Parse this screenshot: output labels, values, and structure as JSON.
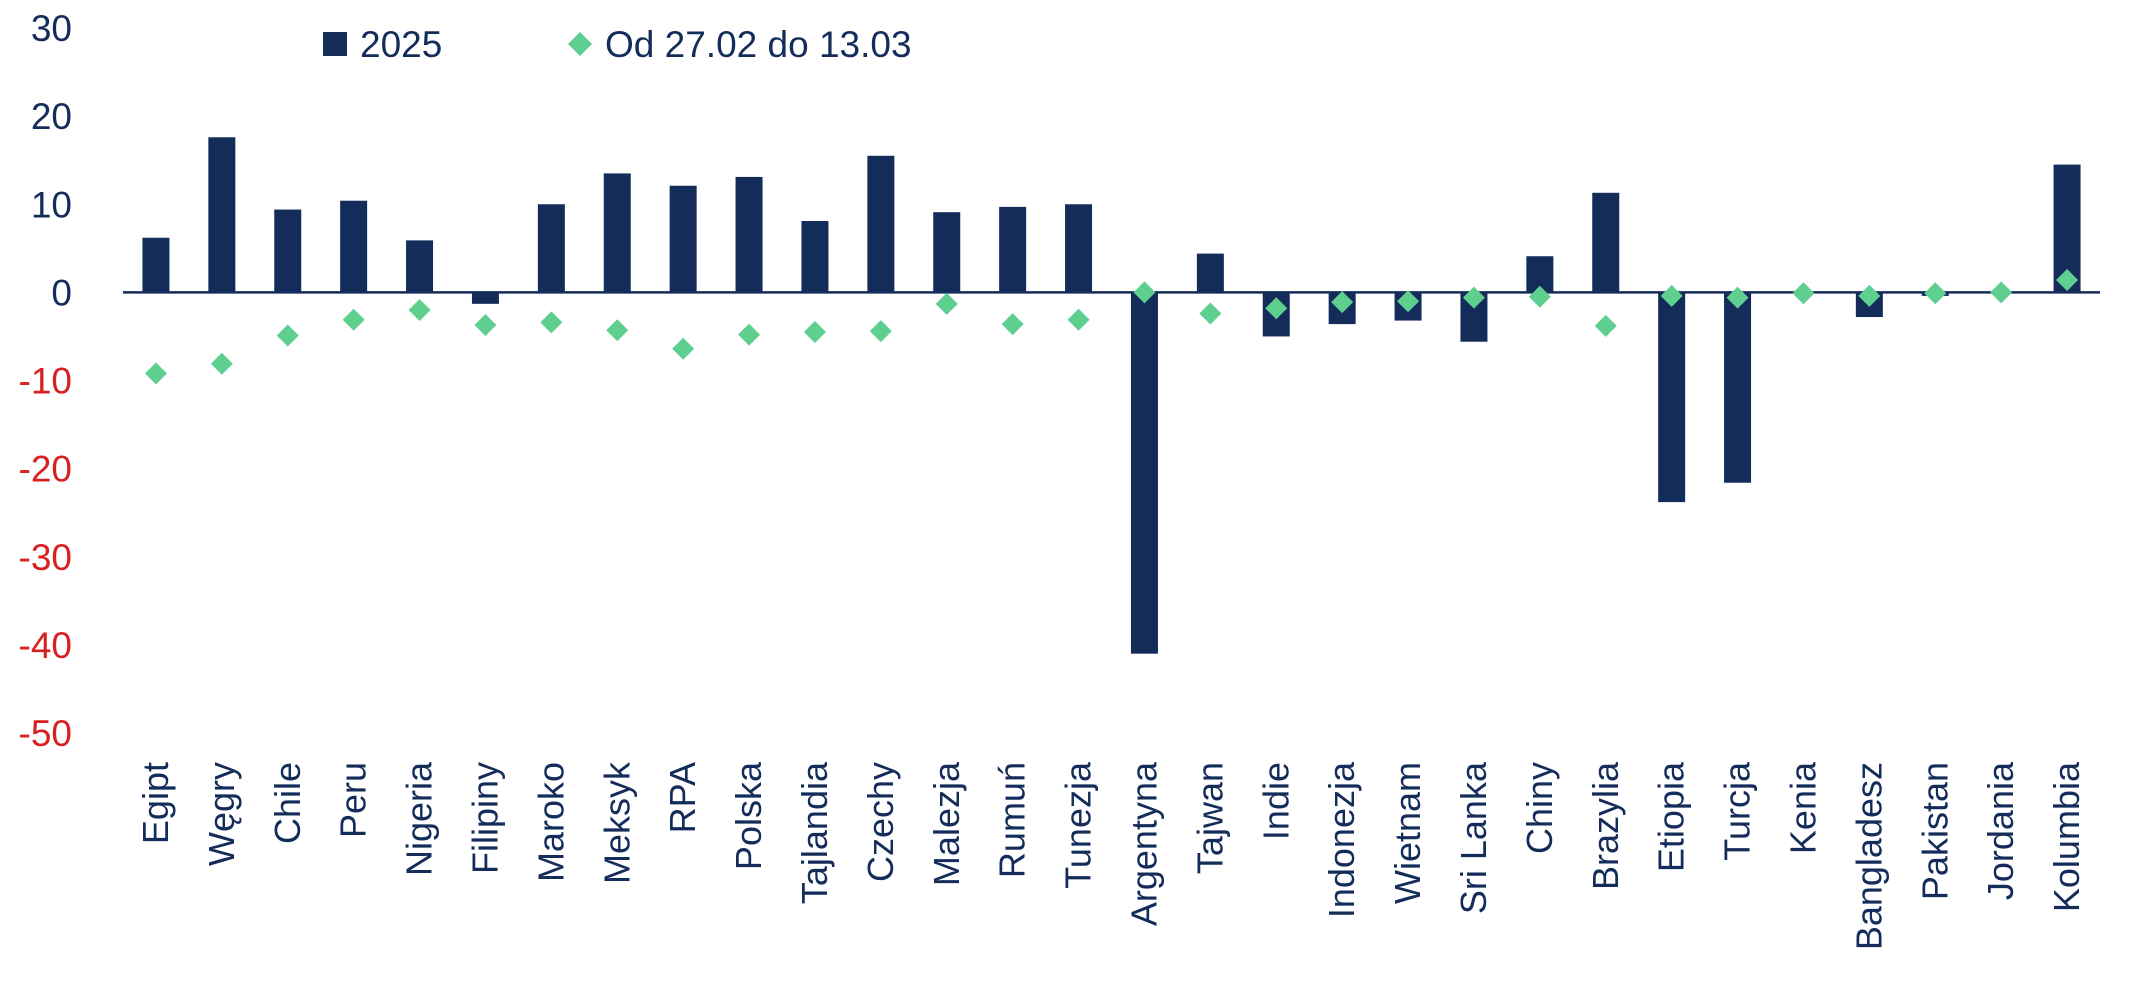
{
  "chart_data": {
    "type": "bar",
    "title": "",
    "xlabel": "",
    "ylabel": "",
    "ylim": [
      -50,
      30
    ],
    "yticks": [
      30,
      20,
      10,
      0,
      -10,
      -20,
      -30,
      -40,
      -50
    ],
    "categories": [
      "Egipt",
      "Węgry",
      "Chile",
      "Peru",
      "Nigeria",
      "Filipiny",
      "Maroko",
      "Meksyk",
      "RPA",
      "Polska",
      "Tajlandia",
      "Czechy",
      "Malezja",
      "Rumuń",
      "Tunezja",
      "Argentyna",
      "Tajwan",
      "Indie",
      "Indonezja",
      "Wietnam",
      "Sri Lanka",
      "Chiny",
      "Brazylia",
      "Etiopia",
      "Turcja",
      "Kenia",
      "Bangladesz",
      "Pakistan",
      "Jordania",
      "Kolumbia"
    ],
    "series": [
      {
        "name": "2025",
        "kind": "bar",
        "color": "#142c5a",
        "values": [
          6.2,
          17.6,
          9.4,
          10.4,
          5.9,
          -1.3,
          10.0,
          13.5,
          12.1,
          13.1,
          8.1,
          15.5,
          9.1,
          9.7,
          10.0,
          -41.0,
          4.4,
          -5.0,
          -3.6,
          -3.2,
          -5.6,
          4.1,
          11.3,
          -23.8,
          -21.6,
          0.0,
          -2.8,
          -0.4,
          0.0,
          14.5
        ]
      },
      {
        "name": "Od 27.02 do 13.03",
        "kind": "marker",
        "color": "#5fcf8f",
        "values": [
          -9.2,
          -8.1,
          -4.9,
          -3.1,
          -2.0,
          -3.7,
          -3.4,
          -4.3,
          -6.4,
          -4.8,
          -4.5,
          -4.4,
          -1.3,
          -3.6,
          -3.1,
          0.0,
          -2.4,
          -1.8,
          -1.1,
          -1.0,
          -0.6,
          -0.5,
          -3.8,
          -0.4,
          -0.6,
          -0.1,
          -0.4,
          -0.1,
          0.0,
          1.4
        ]
      }
    ],
    "legend_position": "top",
    "grid": false,
    "tick_colors": {
      "positive": "#142c5a",
      "negative": "#d7201f"
    },
    "label_color": "#142c5a"
  }
}
